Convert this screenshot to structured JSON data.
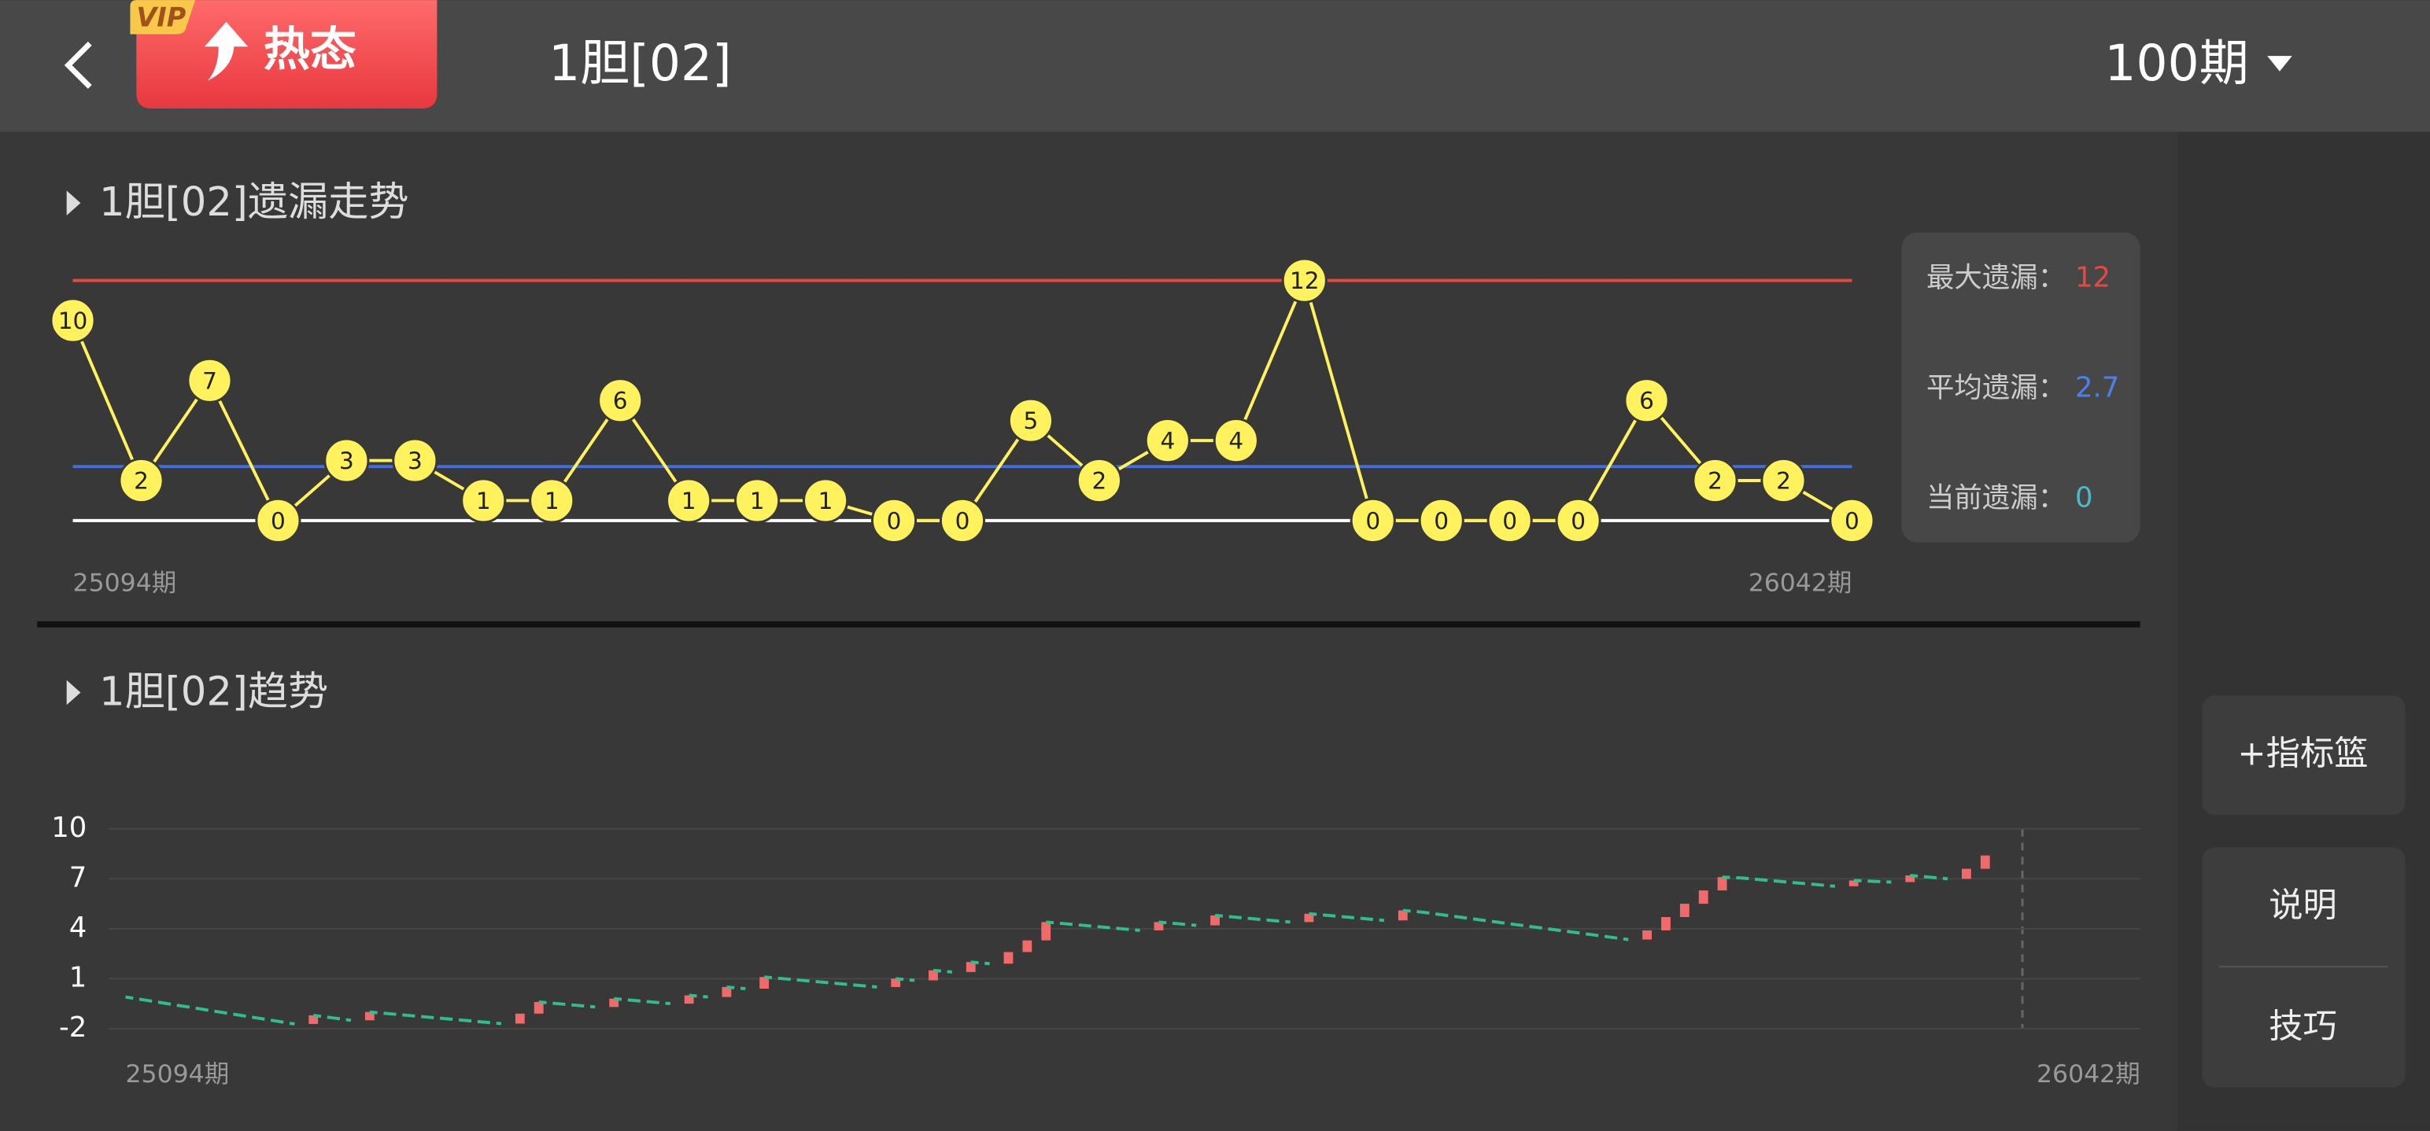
{
  "header": {
    "badge": "VIP",
    "hot_label": "热态",
    "title": "1胆[02]",
    "period_select": "100期"
  },
  "omission_chart": {
    "title": "1胆[02]遗漏走势",
    "values": [
      10,
      2,
      7,
      0,
      3,
      3,
      1,
      1,
      6,
      1,
      1,
      1,
      0,
      0,
      5,
      2,
      4,
      4,
      12,
      0,
      0,
      0,
      0,
      6,
      2,
      2,
      0
    ],
    "ylim": [
      0,
      12
    ],
    "marker_color": "#fff25c",
    "x_start_label": "25094期",
    "x_end_label": "26042期",
    "stats": [
      {
        "label": "最大遗漏：",
        "value": 12,
        "color": "#e8483f",
        "line_color": "#e8483f"
      },
      {
        "label": "平均遗漏：",
        "value": 2.7,
        "color": "#4a82e8",
        "line_color": "#3f6fe0"
      },
      {
        "label": "当前遗漏：",
        "value": 0,
        "color": "#4fb8c8",
        "line_color": "#ffffff"
      }
    ]
  },
  "trend_chart": {
    "title": "1胆[02]趋势",
    "ylim": [
      -2,
      10
    ],
    "yticks": [
      10,
      7,
      4,
      1,
      -2
    ],
    "up_color": "#f06a6a",
    "down_color": "#2fbf8f",
    "x_start_label": "25094期",
    "x_end_label": "26042期",
    "values": [
      -0.1,
      -0.28,
      -0.46,
      -0.64,
      -0.82,
      -1,
      -1.18,
      -1.36,
      -1.54,
      -1.72,
      -1.2,
      -1.35,
      -1.5,
      -1.0,
      -1.1,
      -1.2,
      -1.3,
      -1.4,
      -1.5,
      -1.6,
      -1.7,
      -1.1,
      -0.4,
      -0.5,
      -0.6,
      -0.7,
      -0.2,
      -0.3,
      -0.4,
      -0.5,
      0.0,
      -0.1,
      0.5,
      0.4,
      1.1,
      1.0,
      0.9,
      0.8,
      0.7,
      0.6,
      0.5,
      1.0,
      0.9,
      1.5,
      1.4,
      2.0,
      1.9,
      2.6,
      3.3,
      4.4,
      4.3,
      4.2,
      4.1,
      4.0,
      3.9,
      4.4,
      4.3,
      4.2,
      4.8,
      4.7,
      4.6,
      4.5,
      4.4,
      4.9,
      4.8,
      4.7,
      4.6,
      4.5,
      5.1,
      5.0,
      4.85,
      4.7,
      4.55,
      4.4,
      4.25,
      4.1,
      3.95,
      3.8,
      3.65,
      3.5,
      3.35,
      3.9,
      4.7,
      5.5,
      6.3,
      7.1,
      7.05,
      6.95,
      6.85,
      6.75,
      6.65,
      6.55,
      6.9,
      6.85,
      6.8,
      7.2,
      7.1,
      7.0,
      7.6,
      8.4
    ]
  },
  "sidebar": {
    "buttons": [
      "+指标篮",
      "说明",
      "技巧"
    ]
  }
}
